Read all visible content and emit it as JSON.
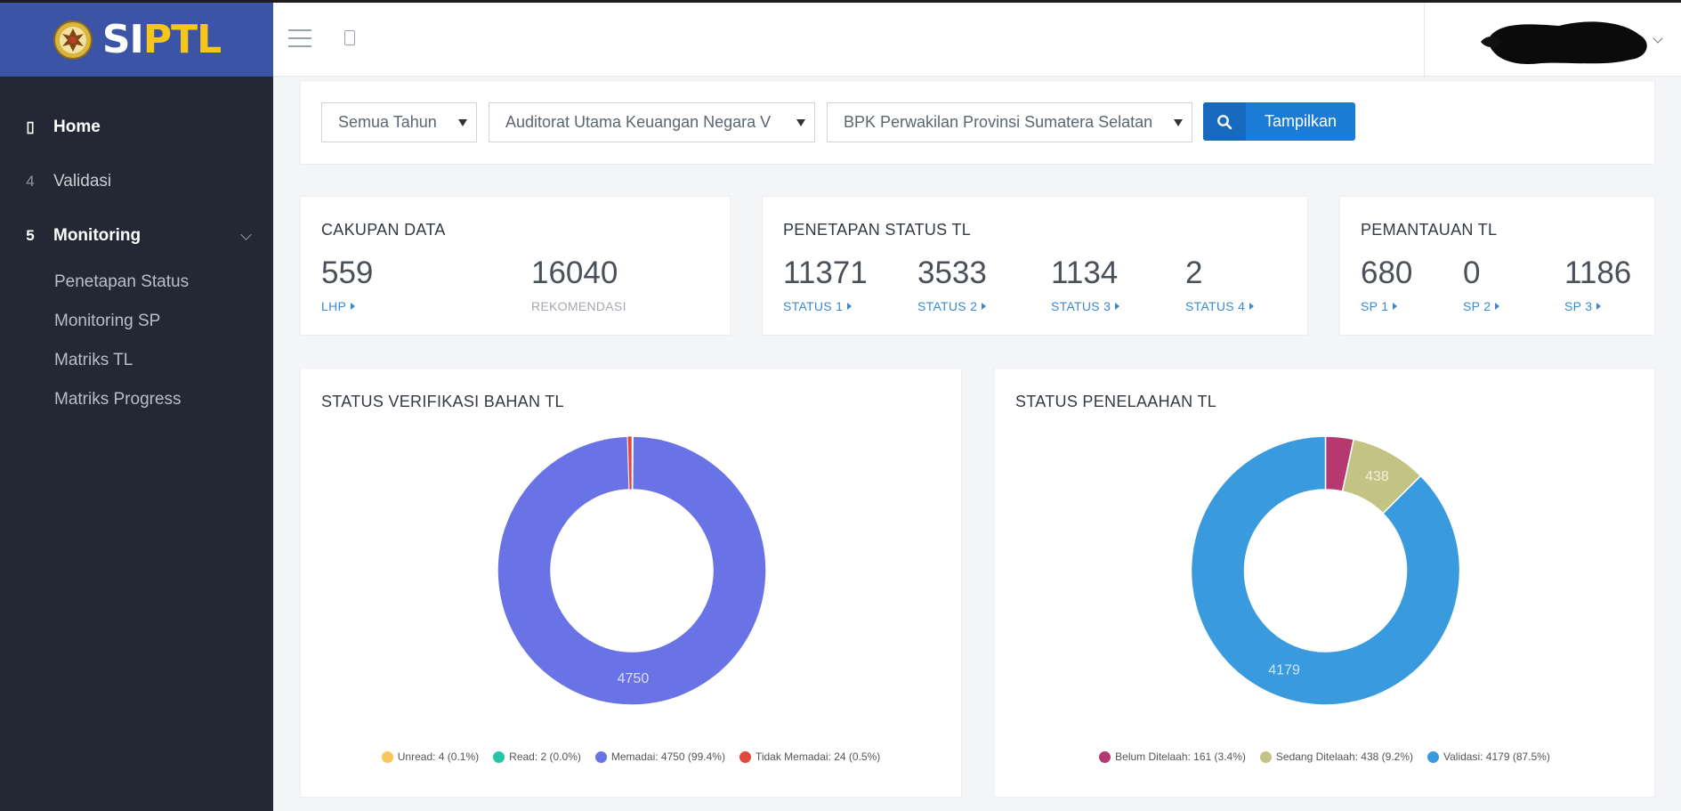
{
  "brand": {
    "logo_si": "SI",
    "logo_ptl": "PTL",
    "emblem_icon": "garuda-emblem-icon"
  },
  "sidebar": {
    "items": [
      {
        "icon": "house-icon",
        "icon_glyph": "▯",
        "label": "Home",
        "active": true
      },
      {
        "icon": "validasi-icon",
        "icon_glyph": "4",
        "label": "Validasi",
        "active": false
      },
      {
        "icon": "monitoring-icon",
        "icon_glyph": "5",
        "label": "Monitoring",
        "active": true
      }
    ],
    "subitems": [
      {
        "label": "Penetapan Status"
      },
      {
        "label": "Monitoring SP"
      },
      {
        "label": "Matriks TL"
      },
      {
        "label": "Matriks Progress"
      }
    ]
  },
  "topbar": {
    "menu_icon": "hamburger-icon",
    "page_icon": "document-icon",
    "user_icon": "redacted-user-avatar"
  },
  "filters": {
    "year": "Semua Tahun",
    "auditorat": "Auditorat Utama Keuangan Negara V",
    "perwakilan": "BPK Perwakilan Provinsi Sumatera Selatan",
    "show_button": "Tampilkan",
    "accent": "#1a7cd6"
  },
  "stats": {
    "cakupan": {
      "title": "CAKUPAN DATA",
      "items": [
        {
          "value": "559",
          "label": "LHP",
          "link": true
        },
        {
          "value": "16040",
          "label": "REKOMENDASI",
          "link": false
        }
      ]
    },
    "penetapan": {
      "title": "PENETAPAN STATUS TL",
      "items": [
        {
          "value": "11371",
          "label": "STATUS 1"
        },
        {
          "value": "3533",
          "label": "STATUS 2"
        },
        {
          "value": "1134",
          "label": "STATUS 3"
        },
        {
          "value": "2",
          "label": "STATUS 4"
        }
      ]
    },
    "pemantauan": {
      "title": "PEMANTAUAN TL",
      "items": [
        {
          "value": "680",
          "label": "SP 1"
        },
        {
          "value": "0",
          "label": "SP 2"
        },
        {
          "value": "1186",
          "label": "SP 3"
        }
      ]
    }
  },
  "chart_data": [
    {
      "type": "pie",
      "title": "STATUS VERIFIKASI BAHAN TL",
      "slices": [
        {
          "name": "Unread",
          "value": 4,
          "label": "Unread: 4 (0.1%)",
          "color": "#f8c65a"
        },
        {
          "name": "Read",
          "value": 2,
          "label": "Read: 2 (0.0%)",
          "color": "#25c6a6"
        },
        {
          "name": "Memadai",
          "value": 4750,
          "label": "Memadai: 4750 (99.4%)",
          "color": "#6a73e6",
          "data_label": "4750"
        },
        {
          "name": "Tidak Memadai",
          "value": 24,
          "label": "Tidak Memadai: 24 (0.5%)",
          "color": "#e2473b"
        }
      ],
      "legend": "bottom"
    },
    {
      "type": "pie",
      "title": "STATUS PENELAAHAN TL",
      "slices": [
        {
          "name": "Belum Ditelaah",
          "value": 161,
          "label": "Belum Ditelaah: 161 (3.4%)",
          "color": "#b5386f"
        },
        {
          "name": "Sedang Ditelaah",
          "value": 438,
          "label": "Sedang Ditelaah: 438 (9.2%)",
          "color": "#c3c384",
          "data_label": "438"
        },
        {
          "name": "Validasi",
          "value": 4179,
          "label": "Validasi: 4179 (87.5%)",
          "color": "#3a9ade",
          "data_label": "4179"
        }
      ],
      "legend": "bottom"
    }
  ]
}
